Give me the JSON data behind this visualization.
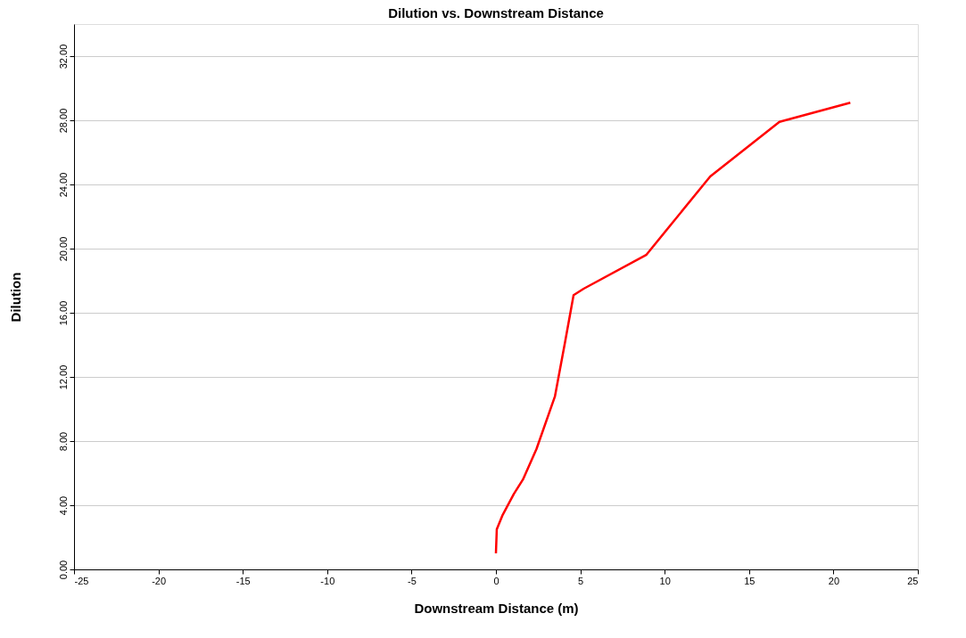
{
  "chart_data": {
    "type": "line",
    "title": "Dilution vs. Downstream Distance",
    "xlabel": "Downstream Distance (m)",
    "ylabel": "Dilution",
    "series": [
      {
        "color": "#ff0000",
        "x": [
          0,
          0.05,
          0.4,
          1.06,
          1.6,
          2.4,
          3.5,
          4.1,
          4.6,
          5.2,
          8.9,
          12.7,
          16.8,
          21.0
        ],
        "values": [
          1.0,
          2.5,
          3.4,
          4.7,
          5.6,
          7.5,
          10.8,
          14.2,
          17.1,
          17.5,
          19.6,
          24.5,
          27.9,
          29.1
        ]
      }
    ],
    "xlim": [
      -25,
      25
    ],
    "xticks": [
      -25,
      -20,
      -15,
      -10,
      -5,
      0,
      5,
      10,
      15,
      20,
      25
    ],
    "ylim": [
      0,
      34
    ],
    "yticks": [
      {
        "value": 0,
        "label": "0.00"
      },
      {
        "value": 4,
        "label": "4.00"
      },
      {
        "value": 8,
        "label": "8.00"
      },
      {
        "value": 12,
        "label": "12.00"
      },
      {
        "value": 16,
        "label": "16.00"
      },
      {
        "value": 20,
        "label": "20.00"
      },
      {
        "value": 24,
        "label": "24.00"
      },
      {
        "value": 28,
        "label": "28.00"
      },
      {
        "value": 32,
        "label": "32.00"
      }
    ],
    "grid": "y",
    "marker": "none",
    "line_style": "solid"
  }
}
